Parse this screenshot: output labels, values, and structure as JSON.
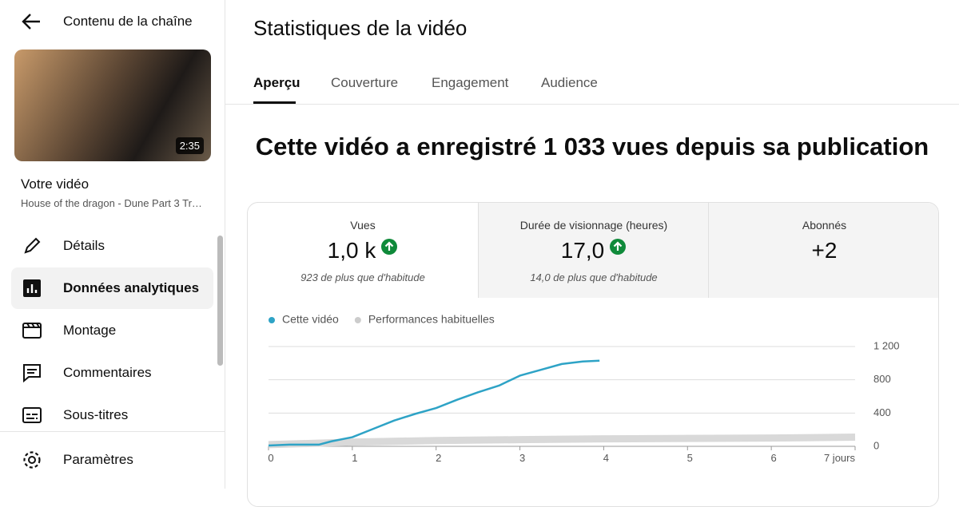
{
  "sidebar": {
    "title": "Contenu de la chaîne",
    "duration": "2:35",
    "video_heading": "Votre vidéo",
    "video_title": "House of the dragon - Dune Part 3 Tr…",
    "nav": [
      "Détails",
      "Données analytiques",
      "Montage",
      "Commentaires",
      "Sous-titres"
    ],
    "settings": "Paramètres"
  },
  "header": {
    "title": "Statistiques de la vidéo",
    "tabs": [
      "Aperçu",
      "Couverture",
      "Engagement",
      "Audience"
    ]
  },
  "headline": "Cette vidéo a enregistré 1 033 vues depuis sa publication",
  "metrics": [
    {
      "label": "Vues",
      "value": "1,0 k",
      "note": "923 de plus que d'habitude"
    },
    {
      "label": "Durée de visionnage (heures)",
      "value": "17,0",
      "note": "14,0 de plus que d'habitude"
    },
    {
      "label": "Abonnés",
      "value": "+2"
    }
  ],
  "chart_data": {
    "type": "line",
    "series": [
      {
        "name": "Cette vidéo",
        "color": "#2ea3c6",
        "x": [
          0,
          0.25,
          0.5,
          0.6,
          0.75,
          1,
          1.25,
          1.5,
          1.75,
          2,
          2.25,
          2.5,
          2.75,
          3,
          3.25,
          3.5,
          3.75,
          3.95
        ],
        "values": [
          10,
          20,
          20,
          20,
          60,
          110,
          210,
          310,
          390,
          460,
          560,
          650,
          730,
          850,
          920,
          990,
          1020,
          1030
        ]
      },
      {
        "name": "Performances habituelles",
        "color": "#d9d9d9",
        "x": [
          0,
          1,
          2,
          3,
          4,
          5,
          6,
          7
        ],
        "values": [
          20,
          50,
          70,
          80,
          90,
          95,
          100,
          110
        ]
      }
    ],
    "xlim": [
      0,
      7
    ],
    "xticks": [
      0,
      1,
      2,
      3,
      4,
      5,
      6,
      {
        "value": 7,
        "label": "7 jours"
      }
    ],
    "ylim": [
      0,
      1200
    ],
    "yticks": [
      0,
      400,
      800,
      {
        "value": 1200,
        "label": "1 200"
      }
    ],
    "grid": true
  }
}
